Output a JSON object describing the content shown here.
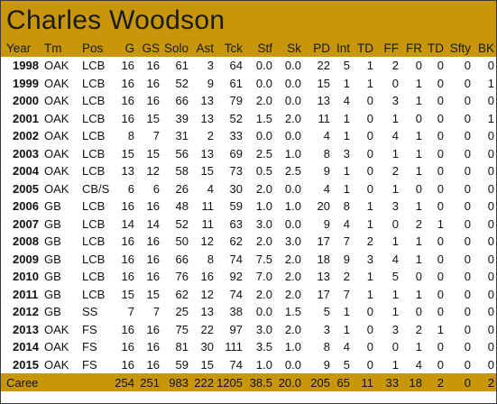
{
  "title": "Charles Woodson",
  "headers": [
    "Year",
    "Tm",
    "Pos",
    "G",
    "GS",
    "Solo",
    "Ast",
    "Tck",
    "Stf",
    "Sk",
    "PD",
    "Int",
    "TD",
    "FF",
    "FR",
    "TD",
    "Sfty",
    "BK"
  ],
  "rows": [
    [
      "1998",
      "OAK",
      "LCB",
      "16",
      "16",
      "61",
      "3",
      "64",
      "0.0",
      "0.0",
      "22",
      "5",
      "1",
      "2",
      "0",
      "0",
      "0",
      "0"
    ],
    [
      "1999",
      "OAK",
      "LCB",
      "16",
      "16",
      "52",
      "9",
      "61",
      "0.0",
      "0.0",
      "15",
      "1",
      "1",
      "0",
      "1",
      "0",
      "0",
      "1"
    ],
    [
      "2000",
      "OAK",
      "LCB",
      "16",
      "16",
      "66",
      "13",
      "79",
      "2.0",
      "0.0",
      "13",
      "4",
      "0",
      "3",
      "1",
      "0",
      "0",
      "0"
    ],
    [
      "2001",
      "OAK",
      "LCB",
      "16",
      "15",
      "39",
      "13",
      "52",
      "1.5",
      "2.0",
      "11",
      "1",
      "0",
      "1",
      "0",
      "0",
      "0",
      "1"
    ],
    [
      "2002",
      "OAK",
      "LCB",
      "8",
      "7",
      "31",
      "2",
      "33",
      "0.0",
      "0.0",
      "4",
      "1",
      "0",
      "4",
      "1",
      "0",
      "0",
      "0"
    ],
    [
      "2003",
      "OAK",
      "LCB",
      "15",
      "15",
      "56",
      "13",
      "69",
      "2.5",
      "1.0",
      "8",
      "3",
      "0",
      "1",
      "1",
      "0",
      "0",
      "0"
    ],
    [
      "2004",
      "OAK",
      "LCB",
      "13",
      "12",
      "58",
      "15",
      "73",
      "0.5",
      "2.5",
      "9",
      "1",
      "0",
      "2",
      "1",
      "0",
      "0",
      "0"
    ],
    [
      "2005",
      "OAK",
      "CB/S",
      "6",
      "6",
      "26",
      "4",
      "30",
      "2.0",
      "0.0",
      "4",
      "1",
      "0",
      "1",
      "0",
      "0",
      "0",
      "0"
    ],
    [
      "2006",
      "GB",
      "LCB",
      "16",
      "16",
      "48",
      "11",
      "59",
      "1.0",
      "1.0",
      "20",
      "8",
      "1",
      "3",
      "1",
      "0",
      "0",
      "0"
    ],
    [
      "2007",
      "GB",
      "LCB",
      "14",
      "14",
      "52",
      "11",
      "63",
      "3.0",
      "0.0",
      "9",
      "4",
      "1",
      "0",
      "2",
      "1",
      "0",
      "0"
    ],
    [
      "2008",
      "GB",
      "LCB",
      "16",
      "16",
      "50",
      "12",
      "62",
      "2.0",
      "3.0",
      "17",
      "7",
      "2",
      "1",
      "1",
      "0",
      "0",
      "0"
    ],
    [
      "2009",
      "GB",
      "LCB",
      "16",
      "16",
      "66",
      "8",
      "74",
      "7.5",
      "2.0",
      "18",
      "9",
      "3",
      "4",
      "1",
      "0",
      "0",
      "0"
    ],
    [
      "2010",
      "GB",
      "LCB",
      "16",
      "16",
      "76",
      "16",
      "92",
      "7.0",
      "2.0",
      "13",
      "2",
      "1",
      "5",
      "0",
      "0",
      "0",
      "0"
    ],
    [
      "2011",
      "GB",
      "LCB",
      "15",
      "15",
      "62",
      "12",
      "74",
      "2.0",
      "2.0",
      "17",
      "7",
      "1",
      "1",
      "1",
      "0",
      "0",
      "0"
    ],
    [
      "2012",
      "GB",
      "SS",
      "7",
      "7",
      "25",
      "13",
      "38",
      "0.0",
      "1.5",
      "5",
      "1",
      "0",
      "1",
      "0",
      "0",
      "0",
      "0"
    ],
    [
      "2013",
      "OAK",
      "FS",
      "16",
      "16",
      "75",
      "22",
      "97",
      "3.0",
      "2.0",
      "3",
      "1",
      "0",
      "3",
      "2",
      "1",
      "0",
      "0"
    ],
    [
      "2014",
      "OAK",
      "FS",
      "16",
      "16",
      "81",
      "30",
      "111",
      "3.5",
      "1.0",
      "8",
      "4",
      "0",
      "0",
      "1",
      "0",
      "0",
      "0"
    ],
    [
      "2015",
      "OAK",
      "FS",
      "16",
      "16",
      "59",
      "15",
      "74",
      "1.0",
      "0.0",
      "9",
      "5",
      "0",
      "1",
      "4",
      "0",
      "0",
      "0"
    ]
  ],
  "career": [
    "Career",
    "",
    "",
    "254",
    "251",
    "983",
    "222",
    "1205",
    "38.5",
    "20.0",
    "205",
    "65",
    "11",
    "33",
    "18",
    "2",
    "0",
    "2"
  ],
  "colors": {
    "header_gold": "#c8960a",
    "text": "#111111",
    "border": "#3a3a3a"
  }
}
